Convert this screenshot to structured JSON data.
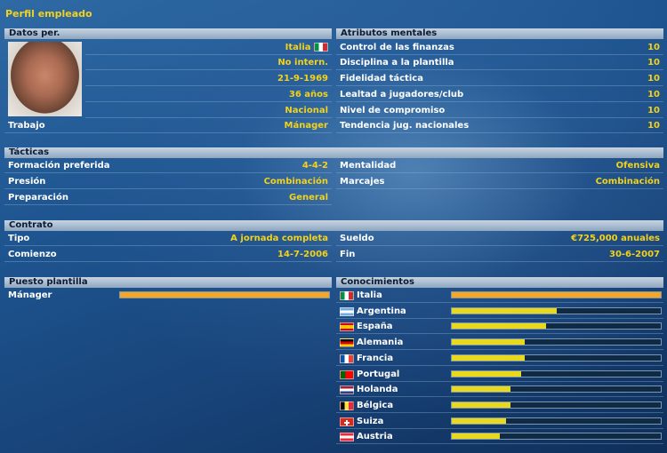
{
  "title": "Perfil empleado",
  "personal": {
    "header": "Datos per.",
    "nationality": "Italia",
    "international": "No intern.",
    "birth_date": "21-9-1969",
    "age": "36 años",
    "reputation": "Nacional",
    "job_label": "Trabajo",
    "job_value": "Mánager"
  },
  "mental": {
    "header": "Atributos mentales",
    "items": [
      {
        "label": "Control de las finanzas",
        "value": "10"
      },
      {
        "label": "Disciplina a la plantilla",
        "value": "10"
      },
      {
        "label": "Fidelidad táctica",
        "value": "10"
      },
      {
        "label": "Lealtad a jugadores/club",
        "value": "10"
      },
      {
        "label": "Nivel de compromiso",
        "value": "10"
      },
      {
        "label": "Tendencia jug. nacionales",
        "value": "10"
      }
    ]
  },
  "tactics": {
    "header": "Tácticas",
    "formation_label": "Formación preferida",
    "formation_value": "4-4-2",
    "mentality_label": "Mentalidad",
    "mentality_value": "Ofensiva",
    "pressing_label": "Presión",
    "pressing_value": "Combinación",
    "marking_label": "Marcajes",
    "marking_value": "Combinación",
    "training_label": "Preparación",
    "training_value": "General"
  },
  "contract": {
    "header": "Contrato",
    "type_label": "Tipo",
    "type_value": "A jornada completa",
    "salary_label": "Sueldo",
    "salary_value": "€725,000 anuales",
    "start_label": "Comienzo",
    "start_value": "14-7-2006",
    "end_label": "Fin",
    "end_value": "30-6-2007"
  },
  "staff_role": {
    "header": "Puesto plantilla",
    "role": "Mánager",
    "level": 1.0,
    "color": "#f5a623"
  },
  "knowledge": {
    "header": "Conocimientos",
    "items": [
      {
        "country": "Italia",
        "flag": "it",
        "level": 1.0,
        "color": "#f5a623"
      },
      {
        "country": "Argentina",
        "flag": "ar",
        "level": 0.5,
        "color": "#e8d81e"
      },
      {
        "country": "España",
        "flag": "es",
        "level": 0.45,
        "color": "#e8d81e"
      },
      {
        "country": "Alemania",
        "flag": "de",
        "level": 0.35,
        "color": "#e8d81e"
      },
      {
        "country": "Francia",
        "flag": "fr",
        "level": 0.35,
        "color": "#e8d81e"
      },
      {
        "country": "Portugal",
        "flag": "pt",
        "level": 0.33,
        "color": "#e8d81e"
      },
      {
        "country": "Holanda",
        "flag": "nl",
        "level": 0.28,
        "color": "#e8d81e"
      },
      {
        "country": "Bélgica",
        "flag": "be",
        "level": 0.28,
        "color": "#e8d81e"
      },
      {
        "country": "Suiza",
        "flag": "ch",
        "level": 0.26,
        "color": "#e8d81e"
      },
      {
        "country": "Austria",
        "flag": "at",
        "level": 0.23,
        "color": "#e8d81e"
      }
    ]
  }
}
